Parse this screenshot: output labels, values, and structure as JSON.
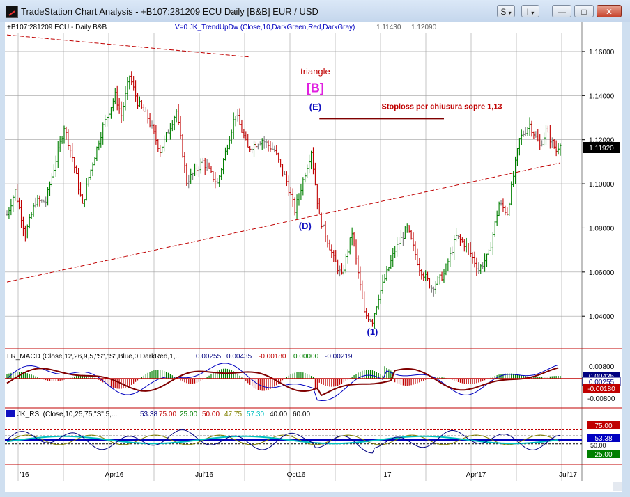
{
  "window": {
    "title": "TradeStation Chart Analysis - +B107:281209 ECU Daily [B&B] EUR / USD",
    "buttons": {
      "s_label": "S",
      "i_label": "I",
      "minimize": "—",
      "maximize": "□",
      "close": "✕"
    }
  },
  "colors": {
    "background": "#ffffff",
    "grid": "#a0a0a0",
    "bull_bar": "#007f00",
    "bear_bar": "#c00000",
    "neutral_bar": "#808080",
    "trendline": "#c00000",
    "label_blue": "#1010c0",
    "label_magenta": "#e020e0",
    "stoploss": "#800000"
  },
  "chart_data": [
    {
      "type": "candlestick",
      "panel": "price",
      "header_symbol": "+B107:281209 ECU - Daily  B&B",
      "header_indicator": "V=0  JK_TrendUpDw (Close,10,DarkGreen,Red,DarkGray)",
      "header_values": [
        "1.11430",
        "1.12090"
      ],
      "x_labels": [
        "'16",
        "Apr16",
        "Jul'16",
        "Oct16",
        "'17",
        "Apr'17",
        "Jul'17"
      ],
      "y_ticks": [
        "1.16000",
        "1.14000",
        "1.12000",
        "1.10000",
        "1.08000",
        "1.06000",
        "1.04000"
      ],
      "ylim": [
        1.0265,
        1.1685
      ],
      "last_price": "1.11920",
      "grid": true,
      "price_path": [
        {
          "t": 0,
          "p": 1.086
        },
        {
          "t": 4,
          "p": 1.097
        },
        {
          "t": 9,
          "p": 1.077
        },
        {
          "t": 14,
          "p": 1.092
        },
        {
          "t": 19,
          "p": 1.092
        },
        {
          "t": 28,
          "p": 1.126
        },
        {
          "t": 32,
          "p": 1.112
        },
        {
          "t": 37,
          "p": 1.09
        },
        {
          "t": 40,
          "p": 1.103
        },
        {
          "t": 47,
          "p": 1.126
        },
        {
          "t": 53,
          "p": 1.14
        },
        {
          "t": 56,
          "p": 1.131
        },
        {
          "t": 60,
          "p": 1.149
        },
        {
          "t": 64,
          "p": 1.137
        },
        {
          "t": 69,
          "p": 1.13
        },
        {
          "t": 75,
          "p": 1.115
        },
        {
          "t": 79,
          "p": 1.124
        },
        {
          "t": 83,
          "p": 1.133
        },
        {
          "t": 88,
          "p": 1.101
        },
        {
          "t": 96,
          "p": 1.11
        },
        {
          "t": 103,
          "p": 1.1
        },
        {
          "t": 112,
          "p": 1.132
        },
        {
          "t": 118,
          "p": 1.116
        },
        {
          "t": 125,
          "p": 1.12
        },
        {
          "t": 131,
          "p": 1.115
        },
        {
          "t": 137,
          "p": 1.101
        },
        {
          "t": 141,
          "p": 1.088
        },
        {
          "t": 146,
          "p": 1.105
        },
        {
          "t": 149,
          "p": 1.115
        },
        {
          "t": 153,
          "p": 1.085
        },
        {
          "t": 160,
          "p": 1.066
        },
        {
          "t": 164,
          "p": 1.058
        },
        {
          "t": 169,
          "p": 1.078
        },
        {
          "t": 175,
          "p": 1.041
        },
        {
          "t": 179,
          "p": 1.038
        },
        {
          "t": 182,
          "p": 1.049
        },
        {
          "t": 190,
          "p": 1.07
        },
        {
          "t": 196,
          "p": 1.08
        },
        {
          "t": 202,
          "p": 1.062
        },
        {
          "t": 208,
          "p": 1.053
        },
        {
          "t": 214,
          "p": 1.059
        },
        {
          "t": 220,
          "p": 1.076
        },
        {
          "t": 225,
          "p": 1.072
        },
        {
          "t": 231,
          "p": 1.061
        },
        {
          "t": 236,
          "p": 1.068
        },
        {
          "t": 241,
          "p": 1.091
        },
        {
          "t": 245,
          "p": 1.087
        },
        {
          "t": 251,
          "p": 1.12
        },
        {
          "t": 256,
          "p": 1.127
        },
        {
          "t": 261,
          "p": 1.117
        },
        {
          "t": 264,
          "p": 1.124
        },
        {
          "t": 269,
          "p": 1.115
        },
        {
          "t": 271,
          "p": 1.119
        }
      ],
      "trendlines": [
        {
          "t1": 0,
          "p1": 1.1675,
          "t2": 119,
          "p2": 1.1575
        },
        {
          "t1": 0,
          "p1": 1.0555,
          "t2": 271,
          "p2": 1.1095
        }
      ],
      "stoploss_line": {
        "t1": 153,
        "t2": 214,
        "p": 1.1295
      },
      "annotations": [
        {
          "text": "triangle",
          "t": 151,
          "p": 1.1495,
          "color": "#c00000"
        },
        {
          "text": "[B]",
          "t": 151,
          "p": 1.1415,
          "color": "#e020e0"
        },
        {
          "text": "(E)",
          "t": 151,
          "p": 1.1335,
          "color": "#1010c0"
        },
        {
          "text": "(D)",
          "t": 146,
          "p": 1.0795,
          "color": "#1010c0"
        },
        {
          "text": "(1)",
          "t": 179,
          "p": 1.0315,
          "color": "#1010c0"
        },
        {
          "text": "Stoploss per chiusura sopre 1,13",
          "t": 213,
          "p": 1.134,
          "color": "#c00000"
        }
      ]
    },
    {
      "type": "macd",
      "panel": "macd",
      "header_name": "LR_MACD (Close,12,26,9,5,\"S\",\"S\",Blue,0,DarkRed,1,...",
      "header_values": [
        "0.00255",
        "0.00435",
        "-0.00180",
        "0.00000",
        "-0.00219"
      ],
      "y_ticks": [
        "0.00800",
        "-0.00800"
      ],
      "value_badges": [
        {
          "text": "0.00435",
          "fill": "#000080"
        },
        {
          "text": "0.00255",
          "fill": "#ffffff"
        },
        {
          "text": "-0.00180",
          "fill": "#c00000"
        }
      ],
      "ylim": [
        -0.0115,
        0.0115
      ]
    },
    {
      "type": "rsi",
      "panel": "rsi",
      "header_name": "JK_RSI (Close,10,25,75,\"S\",5,...",
      "header_values": [
        "53.38",
        "75.00",
        "25.00",
        "50.00",
        "47.75",
        "57.30",
        "40.00",
        "60.00"
      ],
      "y_ticks": [
        "50.00"
      ],
      "value_badges": [
        {
          "text": "75.00",
          "fill": "#c00000"
        },
        {
          "text": "53.38",
          "fill": "#0000c0"
        },
        {
          "text": "25.00",
          "fill": "#007f00"
        }
      ],
      "levels": [
        75,
        60,
        50,
        40,
        25
      ],
      "ylim": [
        0,
        100
      ]
    }
  ]
}
